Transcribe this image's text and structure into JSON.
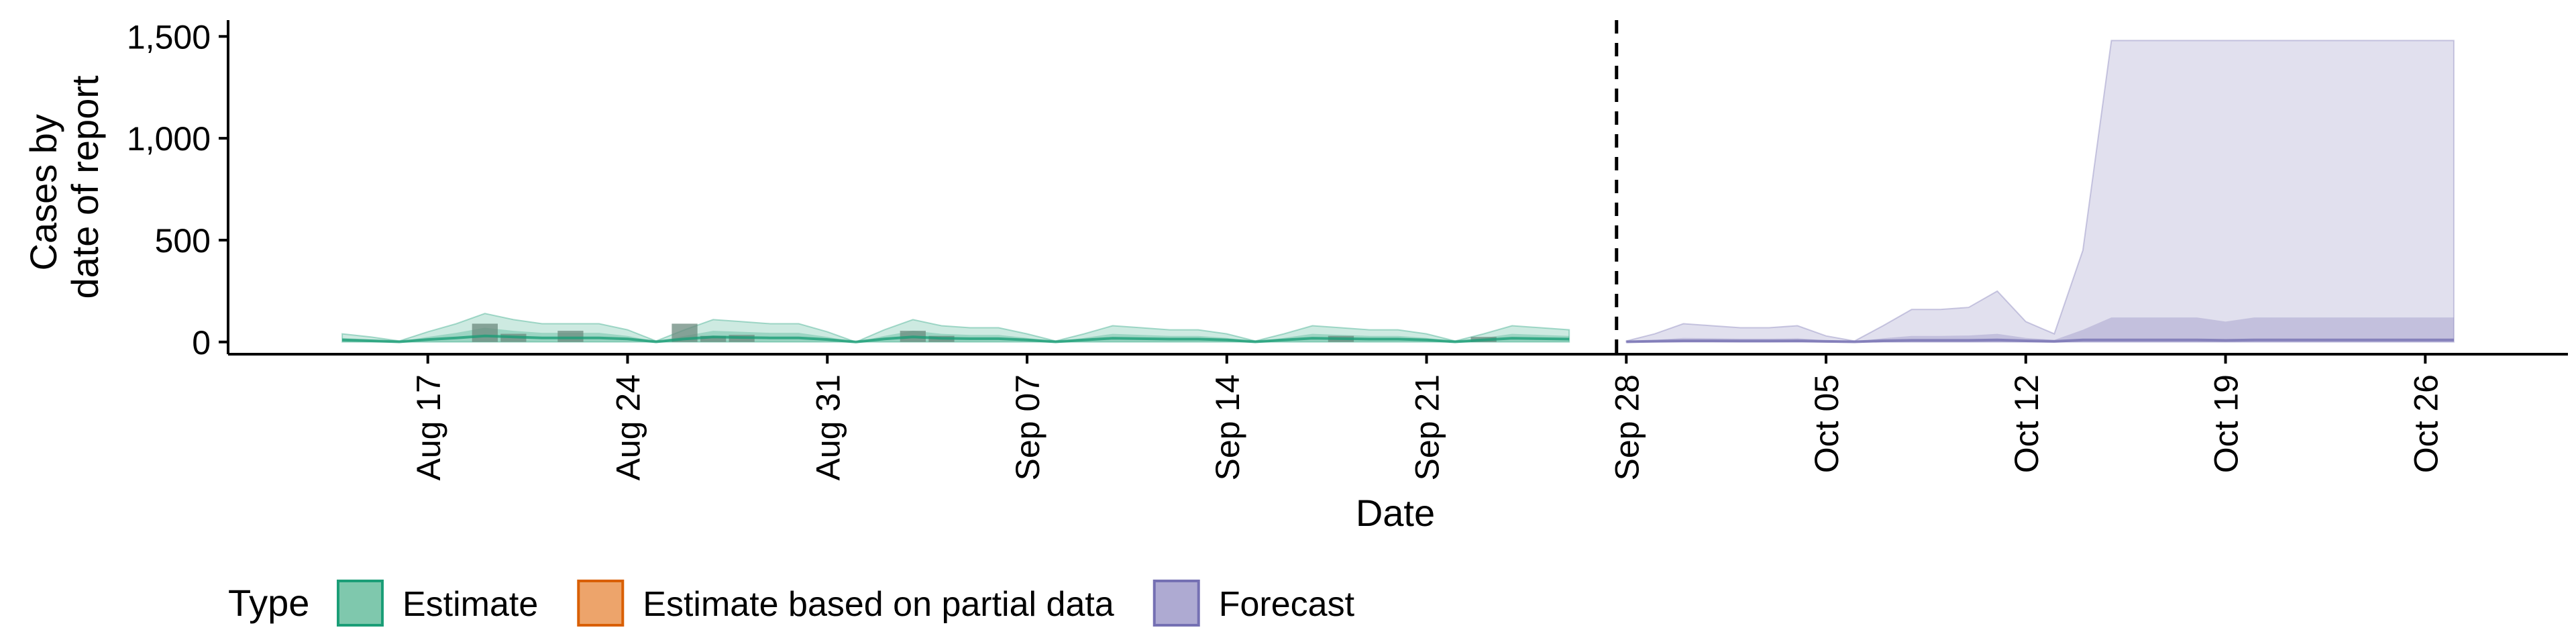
{
  "chart_data": {
    "type": "area",
    "xlabel": "Date",
    "ylabel_lines": [
      "Cases by",
      "date of report"
    ],
    "x_range": [
      "2020-08-10",
      "2020-10-31"
    ],
    "ylim": [
      -60,
      1580
    ],
    "y_ticks": [
      {
        "value": 0,
        "label": "0"
      },
      {
        "value": 500,
        "label": "500"
      },
      {
        "value": 1000,
        "label": "1,000"
      },
      {
        "value": 1500,
        "label": "1,500"
      }
    ],
    "x_ticks": [
      {
        "date": "2020-08-17",
        "label": "Aug 17"
      },
      {
        "date": "2020-08-24",
        "label": "Aug 24"
      },
      {
        "date": "2020-08-31",
        "label": "Aug 31"
      },
      {
        "date": "2020-09-07",
        "label": "Sep 07"
      },
      {
        "date": "2020-09-14",
        "label": "Sep 14"
      },
      {
        "date": "2020-09-21",
        "label": "Sep 21"
      },
      {
        "date": "2020-09-28",
        "label": "Sep 28"
      },
      {
        "date": "2020-10-05",
        "label": "Oct 05"
      },
      {
        "date": "2020-10-12",
        "label": "Oct 12"
      },
      {
        "date": "2020-10-19",
        "label": "Oct 19"
      },
      {
        "date": "2020-10-26",
        "label": "Oct 26"
      }
    ],
    "forecast_start": "2020-09-27",
    "legend": {
      "title": "Type",
      "position": "bottom",
      "items": [
        {
          "label": "Estimate",
          "fill": "#7fc8ad",
          "stroke": "#1b9e77"
        },
        {
          "label": "Estimate based on partial data",
          "fill": "#eda46b",
          "stroke": "#d95f02"
        },
        {
          "label": "Forecast",
          "fill": "#aeaad2",
          "stroke": "#7570b3"
        }
      ]
    },
    "series": [
      {
        "type": "Estimate",
        "color": "#1b9e77",
        "x": [
          "2020-08-14",
          "2020-08-15",
          "2020-08-16",
          "2020-08-17",
          "2020-08-18",
          "2020-08-19",
          "2020-08-20",
          "2020-08-21",
          "2020-08-22",
          "2020-08-23",
          "2020-08-24",
          "2020-08-25",
          "2020-08-26",
          "2020-08-27",
          "2020-08-28",
          "2020-08-29",
          "2020-08-30",
          "2020-08-31",
          "2020-09-01",
          "2020-09-02",
          "2020-09-03",
          "2020-09-04",
          "2020-09-05",
          "2020-09-06",
          "2020-09-07",
          "2020-09-08",
          "2020-09-09",
          "2020-09-10",
          "2020-09-11",
          "2020-09-12",
          "2020-09-13",
          "2020-09-14",
          "2020-09-15",
          "2020-09-16",
          "2020-09-17",
          "2020-09-18",
          "2020-09-19",
          "2020-09-20",
          "2020-09-21",
          "2020-09-22",
          "2020-09-23",
          "2020-09-24",
          "2020-09-25",
          "2020-09-26"
        ],
        "upper90": [
          40,
          25,
          5,
          50,
          90,
          140,
          110,
          90,
          90,
          90,
          60,
          5,
          60,
          110,
          100,
          90,
          90,
          50,
          0,
          60,
          110,
          80,
          70,
          70,
          40,
          5,
          40,
          80,
          70,
          60,
          60,
          40,
          5,
          40,
          80,
          70,
          60,
          60,
          40,
          5,
          40,
          80,
          70,
          60
        ],
        "upper50": [
          20,
          12,
          2,
          25,
          45,
          70,
          55,
          45,
          45,
          45,
          30,
          2,
          30,
          55,
          50,
          45,
          45,
          25,
          0,
          30,
          55,
          40,
          35,
          35,
          20,
          2,
          20,
          40,
          35,
          30,
          30,
          20,
          2,
          20,
          40,
          35,
          30,
          30,
          20,
          2,
          20,
          40,
          35,
          30
        ],
        "median": [
          10,
          6,
          1,
          12,
          20,
          30,
          25,
          20,
          20,
          20,
          15,
          1,
          15,
          25,
          22,
          20,
          20,
          12,
          0,
          15,
          25,
          18,
          16,
          16,
          10,
          1,
          10,
          18,
          16,
          14,
          14,
          10,
          1,
          10,
          18,
          16,
          14,
          14,
          10,
          1,
          10,
          18,
          16,
          14
        ]
      },
      {
        "type": "Forecast",
        "color": "#7570b3",
        "x": [
          "2020-09-28",
          "2020-09-29",
          "2020-09-30",
          "2020-10-01",
          "2020-10-02",
          "2020-10-03",
          "2020-10-04",
          "2020-10-05",
          "2020-10-06",
          "2020-10-07",
          "2020-10-08",
          "2020-10-09",
          "2020-10-10",
          "2020-10-11",
          "2020-10-12",
          "2020-10-13",
          "2020-10-14",
          "2020-10-15",
          "2020-10-16",
          "2020-10-17",
          "2020-10-18",
          "2020-10-19",
          "2020-10-20",
          "2020-10-21",
          "2020-10-22",
          "2020-10-23",
          "2020-10-24",
          "2020-10-25",
          "2020-10-26",
          "2020-10-27"
        ],
        "upper90": [
          5,
          40,
          90,
          80,
          70,
          70,
          80,
          30,
          5,
          80,
          160,
          160,
          170,
          250,
          100,
          40,
          450,
          1480,
          1480,
          1480,
          1480,
          1480,
          1480,
          1480,
          1480,
          1480,
          1480,
          1480,
          1480,
          1480
        ],
        "upper50": [
          2,
          10,
          20,
          18,
          16,
          16,
          18,
          8,
          2,
          18,
          30,
          30,
          32,
          40,
          20,
          10,
          60,
          120,
          120,
          120,
          120,
          100,
          120,
          120,
          120,
          120,
          120,
          120,
          120,
          120
        ],
        "median": [
          1,
          4,
          6,
          6,
          5,
          5,
          6,
          3,
          1,
          6,
          8,
          8,
          8,
          10,
          6,
          3,
          10,
          10,
          10,
          10,
          10,
          8,
          10,
          10,
          10,
          10,
          10,
          10,
          10,
          10
        ]
      }
    ],
    "bars": {
      "type": "Estimate",
      "color": "#6b8a7e",
      "x": [
        "2020-08-19",
        "2020-08-20",
        "2020-08-22",
        "2020-08-26",
        "2020-08-27",
        "2020-08-28",
        "2020-09-03",
        "2020-09-04",
        "2020-09-18",
        "2020-09-23"
      ],
      "values": [
        90,
        40,
        55,
        90,
        30,
        35,
        55,
        30,
        30,
        25
      ]
    }
  }
}
